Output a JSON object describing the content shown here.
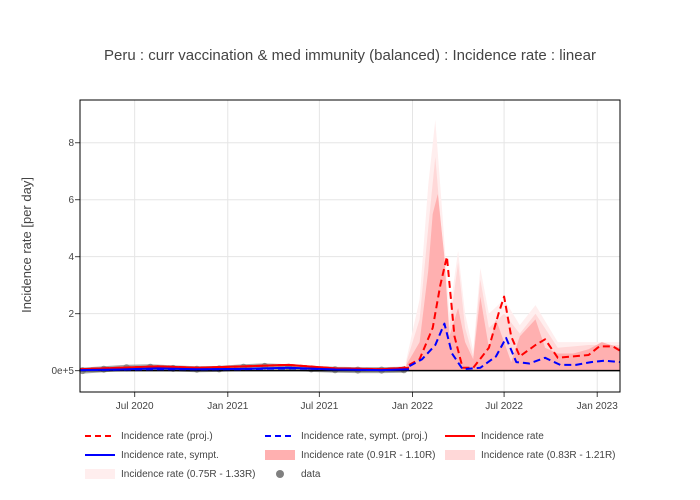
{
  "chart_data": {
    "type": "line",
    "title": "Peru : curr vaccination & med immunity (balanced) : Incidence rate : linear",
    "xlabel": "",
    "ylabel": "Incidence rate [per day]",
    "x_ticks": [
      "Jul 2020",
      "Jan 2021",
      "Jul 2021",
      "Jan 2022",
      "Jul 2022",
      "Jan 2023"
    ],
    "x_tick_values": [
      "2020-07-01",
      "2021-01-01",
      "2021-07-01",
      "2022-01-01",
      "2022-07-01",
      "2023-01-01"
    ],
    "xlim": [
      "2020-03-15",
      "2023-02-15"
    ],
    "y_ticks": [
      "0e+5",
      "2",
      "4",
      "6",
      "8"
    ],
    "y_tick_values": [
      0,
      2,
      4,
      6,
      8
    ],
    "ylim": [
      -0.75,
      9.5
    ],
    "grid": true,
    "legend_position": "bottom",
    "colors": {
      "proj": "#ff0000",
      "sympt": "#0000ff",
      "band_inner": "#ffb0b0",
      "band_mid": "#ffd8d8",
      "band_outer": "#ffeeee",
      "data": "#808080"
    },
    "series": [
      {
        "name": "Incidence rate (proj.)",
        "style": "dashed",
        "color": "#ff0000",
        "x": [
          "2020-03-15",
          "2020-06-01",
          "2020-08-15",
          "2020-11-01",
          "2021-02-01",
          "2021-05-01",
          "2021-08-01",
          "2021-11-01",
          "2021-12-15",
          "2022-01-15",
          "2022-02-10",
          "2022-02-25",
          "2022-03-10",
          "2022-03-25",
          "2022-04-10",
          "2022-05-01",
          "2022-06-01",
          "2022-06-20",
          "2022-07-01",
          "2022-07-15",
          "2022-08-01",
          "2022-09-01",
          "2022-09-20",
          "2022-10-15",
          "2022-11-15",
          "2022-12-15",
          "2023-01-05",
          "2023-02-01",
          "2023-02-15"
        ],
        "y": [
          0.05,
          0.1,
          0.15,
          0.1,
          0.15,
          0.2,
          0.08,
          0.05,
          0.1,
          0.4,
          1.5,
          3.0,
          4.0,
          1.2,
          0.1,
          0.1,
          0.8,
          2.0,
          2.6,
          1.2,
          0.5,
          0.9,
          1.1,
          0.45,
          0.5,
          0.55,
          0.85,
          0.85,
          0.7
        ]
      },
      {
        "name": "Incidence rate, sympt. (proj.)",
        "style": "dashed",
        "color": "#0000ff",
        "x": [
          "2020-03-15",
          "2020-08-15",
          "2021-02-01",
          "2021-05-01",
          "2021-11-01",
          "2021-12-20",
          "2022-01-20",
          "2022-02-15",
          "2022-03-05",
          "2022-03-20",
          "2022-04-10",
          "2022-05-15",
          "2022-06-15",
          "2022-07-05",
          "2022-07-25",
          "2022-08-20",
          "2022-09-20",
          "2022-10-20",
          "2022-11-20",
          "2022-12-20",
          "2023-01-15",
          "2023-02-15"
        ],
        "y": [
          0.02,
          0.05,
          0.05,
          0.08,
          0.02,
          0.1,
          0.4,
          0.9,
          1.65,
          0.6,
          0.05,
          0.1,
          0.5,
          1.15,
          0.3,
          0.25,
          0.45,
          0.2,
          0.2,
          0.3,
          0.35,
          0.3
        ]
      },
      {
        "name": "Incidence rate",
        "style": "solid",
        "color": "#ff0000",
        "x": [
          "2020-03-15",
          "2020-06-01",
          "2020-08-15",
          "2020-11-01",
          "2021-02-01",
          "2021-05-01",
          "2021-08-01",
          "2021-11-01",
          "2021-12-25"
        ],
        "y": [
          0.05,
          0.1,
          0.15,
          0.1,
          0.15,
          0.2,
          0.08,
          0.05,
          0.1
        ]
      },
      {
        "name": "Incidence rate, sympt.",
        "style": "solid",
        "color": "#0000ff",
        "x": [
          "2020-03-15",
          "2020-06-01",
          "2020-08-15",
          "2020-11-01",
          "2021-02-01",
          "2021-05-01",
          "2021-08-01",
          "2021-11-01",
          "2021-12-25"
        ],
        "y": [
          0.02,
          0.04,
          0.08,
          0.05,
          0.06,
          0.1,
          0.04,
          0.02,
          0.05
        ]
      }
    ],
    "bands": [
      {
        "name": "Incidence rate (0.91R - 1.10R)",
        "color": "#ffb0b0",
        "x": [
          "2021-12-20",
          "2022-01-15",
          "2022-02-01",
          "2022-02-10",
          "2022-02-20",
          "2022-03-05",
          "2022-03-15",
          "2022-04-01",
          "2022-04-15",
          "2022-05-01",
          "2022-05-15",
          "2022-06-01",
          "2022-06-15",
          "2022-07-01",
          "2022-07-15",
          "2022-08-01",
          "2022-09-01",
          "2022-09-20",
          "2022-10-15",
          "2022-11-15",
          "2022-12-15",
          "2023-01-10",
          "2023-02-15"
        ],
        "upper": [
          0.2,
          1.0,
          3.5,
          5.5,
          6.2,
          4.0,
          1.2,
          2.2,
          1.0,
          0.4,
          2.6,
          0.8,
          1.8,
          1.0,
          0.3,
          1.2,
          1.8,
          0.8,
          0.6,
          0.6,
          0.75,
          1.0,
          0.8
        ],
        "lower": [
          0,
          0,
          0,
          0,
          0,
          0,
          0,
          0,
          0,
          0,
          0,
          0,
          0,
          0,
          0,
          0,
          0,
          0,
          0,
          0,
          0,
          0,
          0
        ]
      },
      {
        "name": "Incidence rate (0.83R - 1.21R)",
        "color": "#ffd8d8",
        "x": [
          "2021-12-20",
          "2022-01-15",
          "2022-02-01",
          "2022-02-15",
          "2022-03-01",
          "2022-03-15",
          "2022-04-01",
          "2022-04-15",
          "2022-05-01",
          "2022-05-15",
          "2022-06-01",
          "2022-07-01",
          "2022-08-01",
          "2022-09-01",
          "2022-10-15",
          "2022-12-15",
          "2023-02-15"
        ],
        "upper": [
          0.3,
          1.8,
          5.0,
          7.5,
          4.5,
          1.5,
          3.8,
          1.5,
          0.5,
          3.2,
          1.5,
          2.0,
          1.3,
          2.0,
          0.8,
          0.9,
          0.9
        ],
        "lower": [
          0,
          0,
          0,
          0,
          0,
          0,
          0,
          0,
          0,
          0,
          0,
          0,
          0,
          0,
          0,
          0,
          0
        ]
      },
      {
        "name": "Incidence rate (0.75R - 1.33R)",
        "color": "#ffeeee",
        "x": [
          "2021-12-20",
          "2022-01-15",
          "2022-02-01",
          "2022-02-15",
          "2022-03-01",
          "2022-03-15",
          "2022-04-01",
          "2022-04-15",
          "2022-05-01",
          "2022-05-15",
          "2022-06-01",
          "2022-07-01",
          "2022-08-01",
          "2022-09-01",
          "2022-10-15",
          "2022-12-15",
          "2023-02-15"
        ],
        "upper": [
          0.4,
          2.5,
          6.5,
          8.8,
          5.5,
          2.0,
          4.2,
          2.0,
          0.7,
          3.6,
          2.0,
          2.5,
          1.6,
          2.3,
          1.0,
          1.0,
          1.0
        ],
        "lower": [
          0,
          0,
          0,
          0,
          0,
          0,
          0,
          0,
          0,
          0,
          0,
          0,
          0,
          0,
          0,
          0,
          0
        ]
      }
    ],
    "data_points": {
      "name": "data",
      "color": "#808080",
      "x": [
        "2020-03-20",
        "2020-05-01",
        "2020-06-15",
        "2020-08-01",
        "2020-09-15",
        "2020-11-01",
        "2020-12-15",
        "2021-02-01",
        "2021-03-15",
        "2021-05-01",
        "2021-06-15",
        "2021-08-01",
        "2021-09-15",
        "2021-11-01",
        "2021-12-15"
      ],
      "y": [
        0.0,
        0.05,
        0.1,
        0.12,
        0.08,
        0.05,
        0.06,
        0.12,
        0.15,
        0.12,
        0.06,
        0.03,
        0.02,
        0.02,
        0.03
      ]
    }
  }
}
